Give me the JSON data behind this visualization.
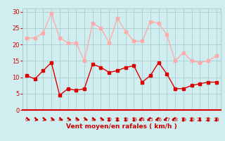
{
  "x": [
    0,
    1,
    2,
    3,
    4,
    5,
    6,
    7,
    8,
    9,
    10,
    11,
    12,
    13,
    14,
    15,
    16,
    17,
    18,
    19,
    20,
    21,
    22,
    23
  ],
  "wind_avg": [
    10.5,
    9.5,
    12,
    14.5,
    4.5,
    6.5,
    6,
    6.5,
    14,
    13,
    11.5,
    12,
    13,
    13.5,
    8.5,
    10.5,
    14.5,
    11,
    6.5,
    6.5,
    7.5,
    8,
    8.5,
    8.5
  ],
  "wind_gust": [
    22,
    22,
    23.5,
    29.5,
    22,
    20.5,
    20.5,
    15,
    26.5,
    25,
    20.5,
    28,
    24,
    21,
    21,
    27,
    26.5,
    23,
    15,
    17.5,
    15,
    14.5,
    15,
    16.5
  ],
  "color_avg": "#dd0000",
  "color_gust": "#ffaaaa",
  "bg_color": "#d0eef0",
  "grid_color": "#aacccc",
  "xlabel": "Vent moyen/en rafales ( km/h )",
  "xlabel_color": "#cc0000",
  "tick_label_color": "#cc0000",
  "arrow_color": "#cc0000",
  "ylim": [
    0,
    31
  ],
  "yticks": [
    0,
    5,
    10,
    15,
    20,
    25,
    30
  ],
  "xlim": [
    -0.5,
    23.5
  ],
  "marker_size": 2.2,
  "line_width": 1.0
}
